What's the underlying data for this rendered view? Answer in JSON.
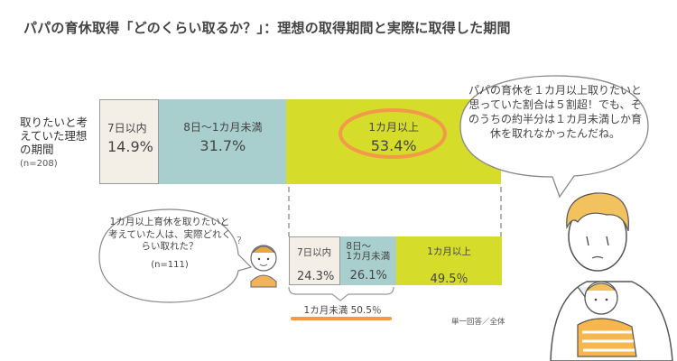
{
  "title": "パパの育休取得「どのくらい取るか？」：理想の取得期間と実際に取得した期間",
  "ideal": {
    "label": "取りたいと考えていた理想の期間",
    "n": "(n=208)"
  },
  "actual": {
    "question": "1カ月以上育休を取りたいと考えていた人は、実際どれくらい取れた？",
    "n": "(n=111)"
  },
  "speech": "パパの育休を１カ月以上取りたいと思っていた割合は５割超！でも、そのうちの約半分は１カ月未満しか育休を取れなかったんだね。",
  "under_label": "1カ月未満 50.5％",
  "note": "単一回答／全体",
  "colors": {
    "cat1": "#f4efe6",
    "cat2": "#a8cfcd",
    "cat3": "#d6dc2a",
    "accent": "#f39a4a",
    "outline": "#9a9a9a"
  },
  "chart_data": [
    {
      "type": "bar",
      "orientation": "horizontal-stacked",
      "categories": [
        "7日以内",
        "8日〜1カ月未満",
        "1カ月以上"
      ],
      "values": [
        14.9,
        31.7,
        53.4
      ],
      "value_labels": [
        "14.9%",
        "31.7%",
        "53.4%"
      ]
    },
    {
      "type": "bar",
      "orientation": "horizontal-stacked",
      "categories": [
        "7日以内",
        "8日〜\n1カ月未満",
        "1カ月以上"
      ],
      "values": [
        24.3,
        26.1,
        49.5
      ],
      "value_labels": [
        "24.3%",
        "26.1%",
        "49.5％"
      ]
    }
  ]
}
